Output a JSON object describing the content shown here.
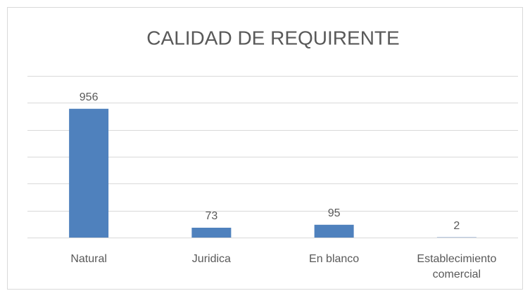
{
  "chart_data": {
    "type": "bar",
    "title": "CALIDAD DE REQUIRENTE",
    "categories": [
      "Natural",
      "Juridica",
      "En blanco",
      "Establecimiento comercial"
    ],
    "values": [
      956,
      73,
      95,
      2
    ],
    "color": "#4f81bd",
    "ylim": [
      0,
      1200
    ],
    "yticks": [
      0,
      200,
      400,
      600,
      800,
      1000,
      1200
    ],
    "grid": true
  }
}
